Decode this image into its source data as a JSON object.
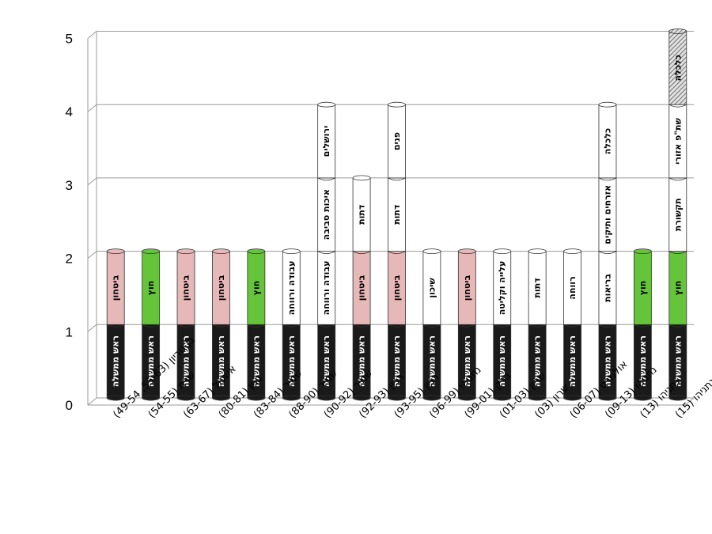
{
  "chart_data": {
    "type": "bar",
    "stacked": true,
    "orientation": "vertical",
    "ylim": [
      0,
      5
    ],
    "yticks": [
      "0",
      "1",
      "2",
      "3",
      "4",
      "5"
    ],
    "grid": true,
    "legend": "none",
    "colors": {
      "black": "#1a1a1a",
      "pink": "#e6b8b7",
      "green": "#66c43a",
      "white": "#ffffff",
      "hatched": "#c8c8c8"
    },
    "categories": [
      "בן גוריון (55-63, 49-54)",
      "שרת (54-55)",
      "אשכול (63-67)",
      "בגין (80-81)",
      "שמיר (83-84)",
      "שמיר (88-90)",
      "שמיר (90-92)",
      "רבין (92-93)",
      "רבין (93-95)",
      "נתניהו (96-99)",
      "ברק (99-01)",
      "שרון (01-03)",
      "שרון (03)",
      "אולמרט (06-07)",
      "נתניהו (09-13)",
      "נתניהו (13)",
      "נתניהו (15)"
    ],
    "bars": [
      {
        "segments": [
          {
            "label": "ראש ממשלה",
            "value": 1,
            "color": "black"
          },
          {
            "label": "ביטחון",
            "value": 1,
            "color": "pink"
          }
        ]
      },
      {
        "segments": [
          {
            "label": "ראש ממשלה",
            "value": 1,
            "color": "black"
          },
          {
            "label": "חוץ",
            "value": 1,
            "color": "green"
          }
        ]
      },
      {
        "segments": [
          {
            "label": "ראש ממשלה",
            "value": 1,
            "color": "black"
          },
          {
            "label": "ביטחון",
            "value": 1,
            "color": "pink"
          }
        ]
      },
      {
        "segments": [
          {
            "label": "ראש ממשלה",
            "value": 1,
            "color": "black"
          },
          {
            "label": "ביטחון",
            "value": 1,
            "color": "pink"
          }
        ]
      },
      {
        "segments": [
          {
            "label": "ראש ממשלה",
            "value": 1,
            "color": "black"
          },
          {
            "label": "חוץ",
            "value": 1,
            "color": "green"
          }
        ]
      },
      {
        "segments": [
          {
            "label": "ראש ממשלה",
            "value": 1,
            "color": "black"
          },
          {
            "label": "עבודה ורווחה",
            "value": 1,
            "color": "white"
          }
        ]
      },
      {
        "segments": [
          {
            "label": "ראש ממשלה",
            "value": 1,
            "color": "black"
          },
          {
            "label": "עבודה ורווחה",
            "value": 1,
            "color": "white"
          },
          {
            "label": "איכות סביבה",
            "value": 1,
            "color": "white"
          },
          {
            "label": "ירושלים",
            "value": 1,
            "color": "white"
          }
        ]
      },
      {
        "segments": [
          {
            "label": "ראש ממשלה",
            "value": 1,
            "color": "black"
          },
          {
            "label": "ביטחון",
            "value": 1,
            "color": "pink"
          },
          {
            "label": "דתות",
            "value": 1,
            "color": "white"
          }
        ]
      },
      {
        "segments": [
          {
            "label": "ראש ממשלה",
            "value": 1,
            "color": "black"
          },
          {
            "label": "ביטחון",
            "value": 1,
            "color": "pink"
          },
          {
            "label": "דתות",
            "value": 1,
            "color": "white"
          },
          {
            "label": "פנים",
            "value": 1,
            "color": "white"
          }
        ]
      },
      {
        "segments": [
          {
            "label": "ראש ממשלה",
            "value": 1,
            "color": "black"
          },
          {
            "label": "שיכון",
            "value": 1,
            "color": "white"
          }
        ]
      },
      {
        "segments": [
          {
            "label": "ראש ממשלה",
            "value": 1,
            "color": "black"
          },
          {
            "label": "ביטחון",
            "value": 1,
            "color": "pink"
          }
        ]
      },
      {
        "segments": [
          {
            "label": "ראש ממשלה",
            "value": 1,
            "color": "black"
          },
          {
            "label": "עלייה וקליטה",
            "value": 1,
            "color": "white"
          }
        ]
      },
      {
        "segments": [
          {
            "label": "ראש ממשלה",
            "value": 1,
            "color": "black"
          },
          {
            "label": "דתות",
            "value": 1,
            "color": "white"
          }
        ]
      },
      {
        "segments": [
          {
            "label": "ראש ממשלה",
            "value": 1,
            "color": "black"
          },
          {
            "label": "רווחה",
            "value": 1,
            "color": "white"
          }
        ]
      },
      {
        "segments": [
          {
            "label": "ראש ממשלה",
            "value": 1,
            "color": "black"
          },
          {
            "label": "בריאות",
            "value": 1,
            "color": "white"
          },
          {
            "label": "אזרחים ותיקים",
            "value": 1,
            "color": "white"
          },
          {
            "label": "כלכלה",
            "value": 1,
            "color": "white"
          }
        ]
      },
      {
        "segments": [
          {
            "label": "ראש ממשלה",
            "value": 1,
            "color": "black"
          },
          {
            "label": "חוץ",
            "value": 1,
            "color": "green"
          }
        ]
      },
      {
        "segments": [
          {
            "label": "ראש ממשלה",
            "value": 1,
            "color": "black"
          },
          {
            "label": "חוץ",
            "value": 1,
            "color": "green"
          },
          {
            "label": "תקשורת",
            "value": 1,
            "color": "white"
          },
          {
            "label": "שת\"פ אזורי",
            "value": 1,
            "color": "white"
          },
          {
            "label": "כלכלה",
            "value": 1,
            "color": "hatched"
          }
        ]
      }
    ]
  }
}
